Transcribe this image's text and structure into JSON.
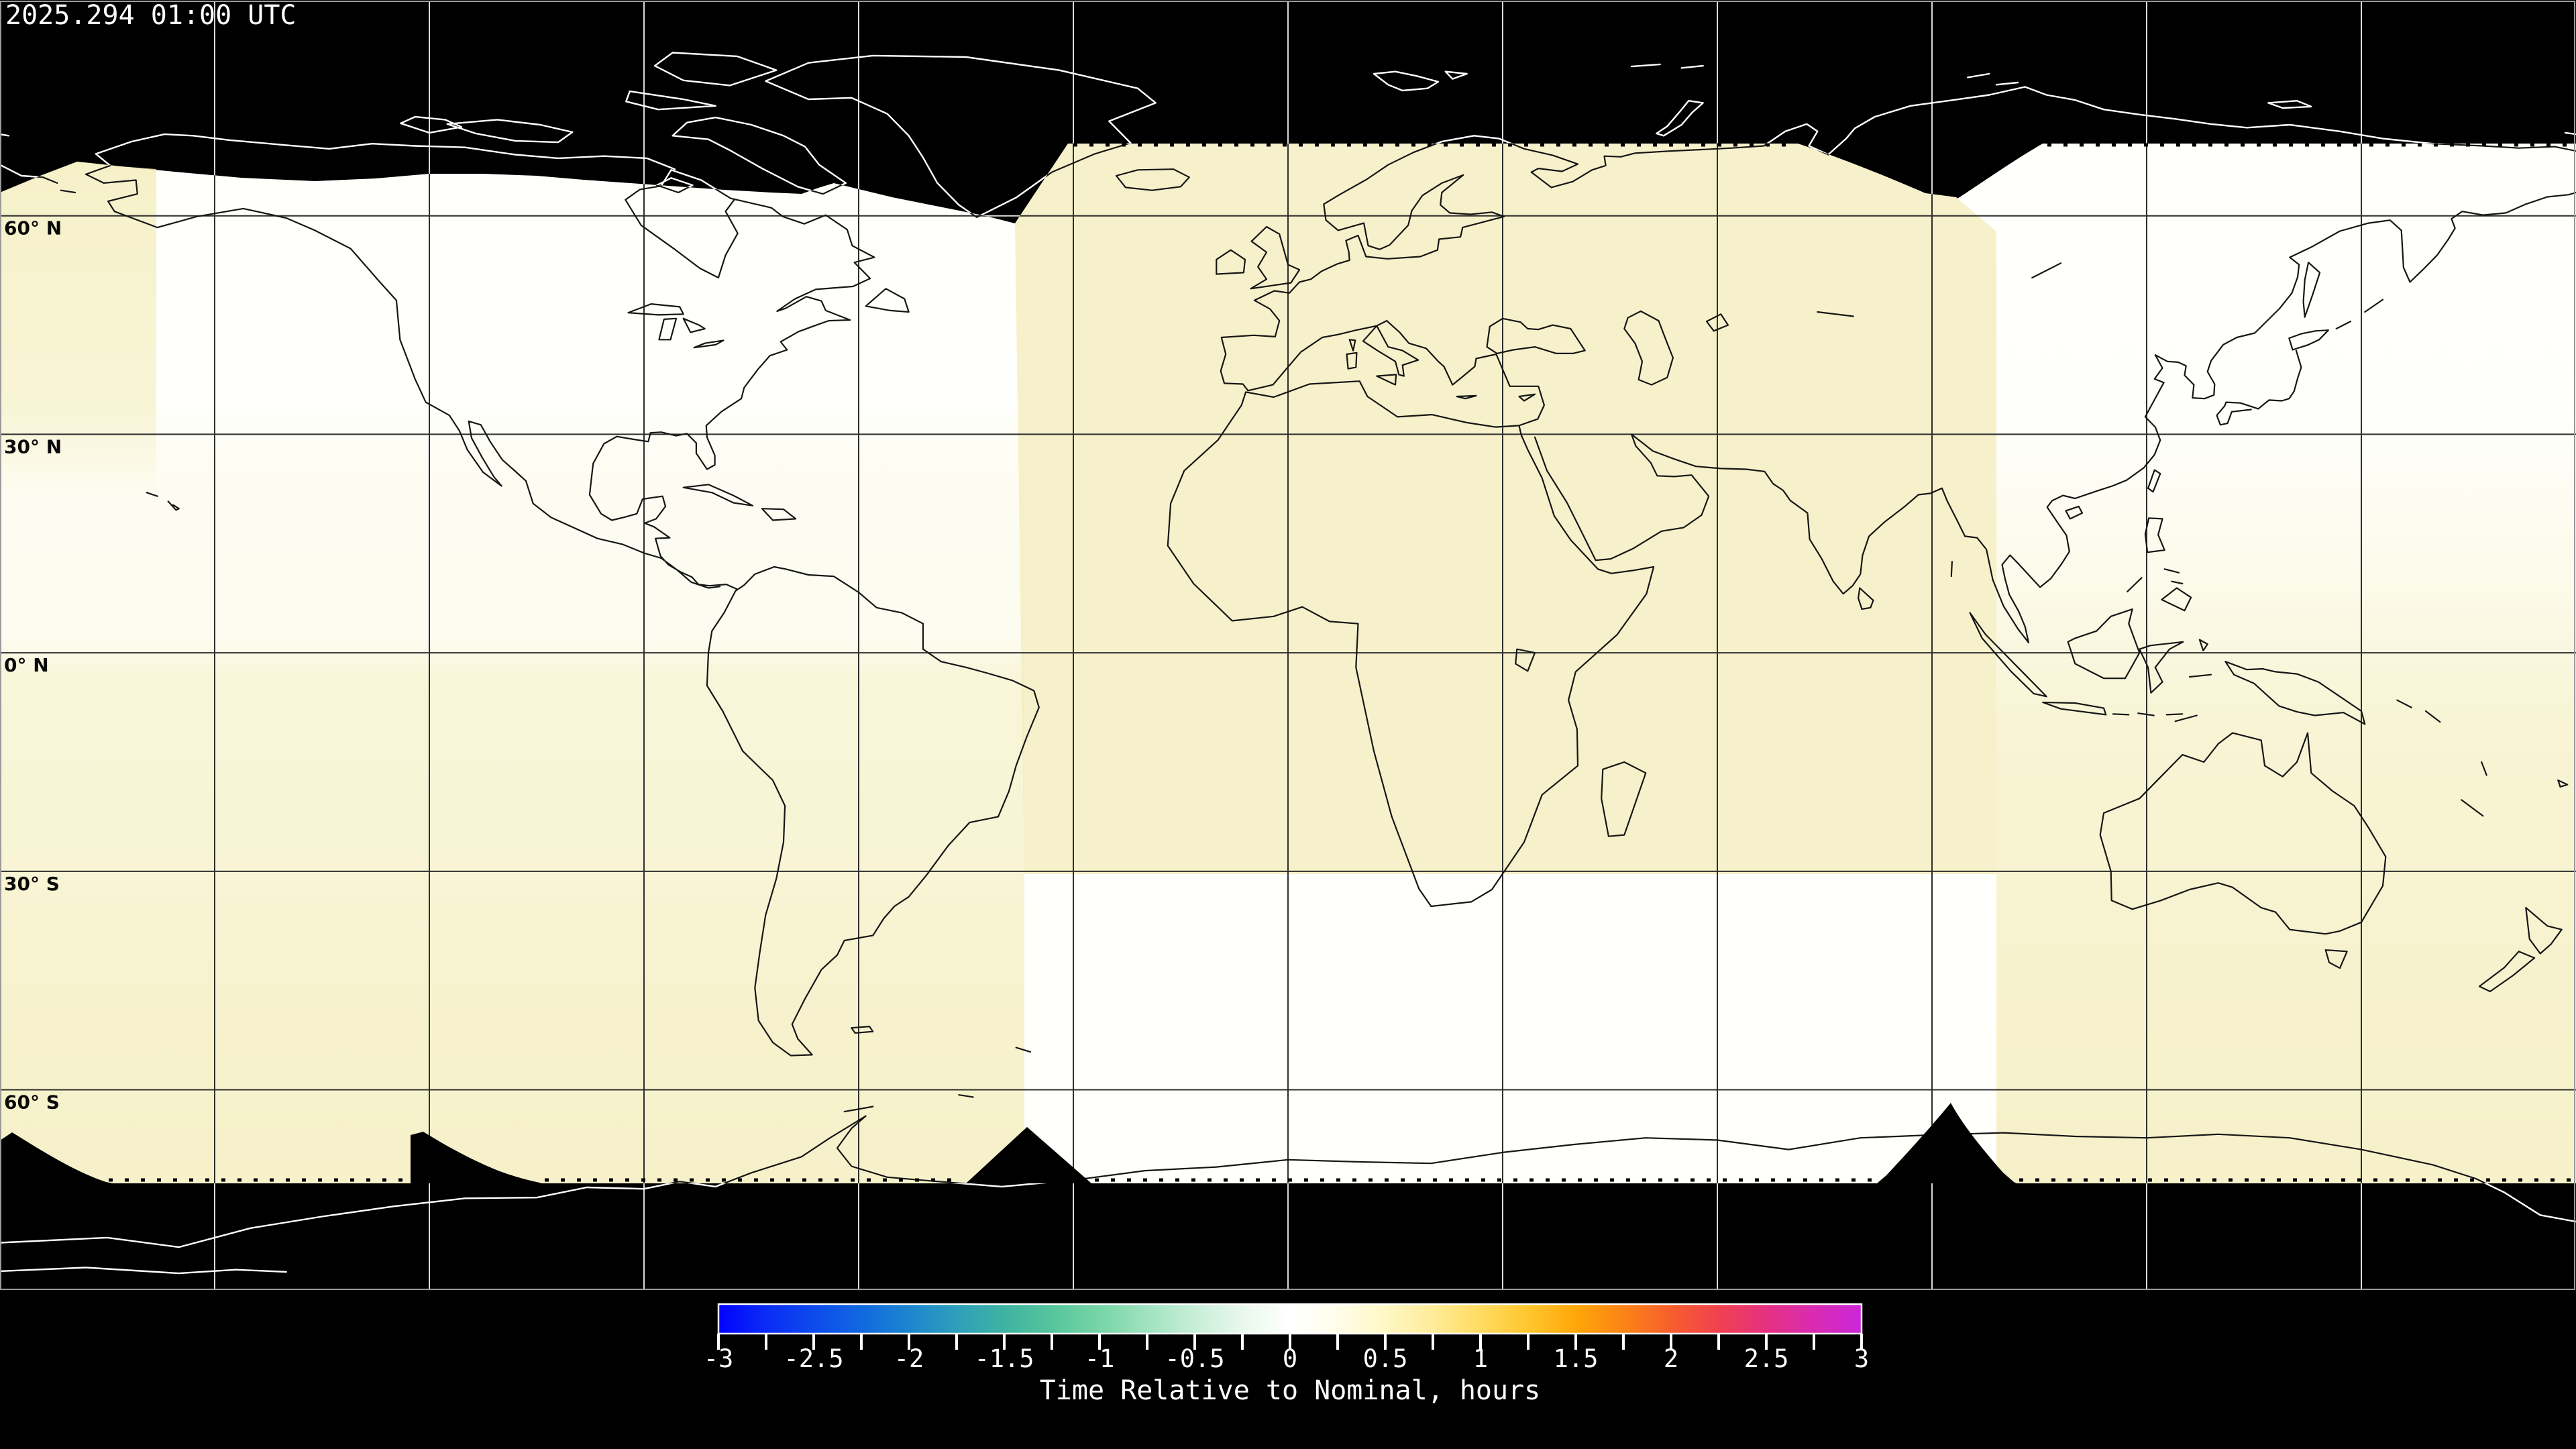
{
  "figure": {
    "timestamp": "2025.294 01:00 UTC"
  },
  "map": {
    "lat_labels": [
      {
        "text": "60° N",
        "lat": 60
      },
      {
        "text": "30° N",
        "lat": 30
      },
      {
        "text": "0° N",
        "lat": 0
      },
      {
        "text": "30° S",
        "lat": -30
      },
      {
        "text": "60° S",
        "lat": -60
      }
    ],
    "grid": {
      "lat_step_deg": 30,
      "lon_step_deg": 30
    }
  },
  "colorbar": {
    "caption": "Time Relative to Nominal, hours",
    "min_hours": -3,
    "max_hours": 3,
    "label_step_hours": 0.5,
    "tick_step_hours": 0.25,
    "tick_labels": [
      "-3",
      "-2.5",
      "-2",
      "-1.5",
      "-1",
      "-0.5",
      "0",
      "0.5",
      "1",
      "1.5",
      "2",
      "2.5",
      "3"
    ],
    "gradient_stops": [
      {
        "v": -3.0,
        "c": "#0202fe"
      },
      {
        "v": -2.75,
        "c": "#0a2cf5"
      },
      {
        "v": -2.5,
        "c": "#0d4aec"
      },
      {
        "v": -2.25,
        "c": "#1168e0"
      },
      {
        "v": -2.0,
        "c": "#1c86cf"
      },
      {
        "v": -1.75,
        "c": "#2d9fbb"
      },
      {
        "v": -1.5,
        "c": "#3eb3a2"
      },
      {
        "v": -1.25,
        "c": "#57c59c"
      },
      {
        "v": -1.0,
        "c": "#77d5a7"
      },
      {
        "v": -0.75,
        "c": "#a0e3c0"
      },
      {
        "v": -0.5,
        "c": "#c8eed8"
      },
      {
        "v": -0.25,
        "c": "#e9f8ec"
      },
      {
        "v": 0.0,
        "c": "#ffffff"
      },
      {
        "v": 0.25,
        "c": "#fffdea"
      },
      {
        "v": 0.5,
        "c": "#fff8c4"
      },
      {
        "v": 0.75,
        "c": "#ffec9a"
      },
      {
        "v": 1.0,
        "c": "#ffdb60"
      },
      {
        "v": 1.25,
        "c": "#ffc62e"
      },
      {
        "v": 1.5,
        "c": "#ffa70a"
      },
      {
        "v": 1.75,
        "c": "#fb8416"
      },
      {
        "v": 2.0,
        "c": "#f75e2d"
      },
      {
        "v": 2.25,
        "c": "#f04150"
      },
      {
        "v": 2.5,
        "c": "#e43181"
      },
      {
        "v": 2.75,
        "c": "#d92bb2"
      },
      {
        "v": 3.0,
        "c": "#cb27da"
      }
    ]
  },
  "chart_data": {
    "type": "heatmap",
    "title": "Time Relative to Nominal, hours",
    "timestamp_utc": "2025.294 01:00 UTC",
    "projection": "equirectangular world map, 180W-180E, 90N-90S, gridlines every 30 degrees",
    "colorbar": {
      "min": -3,
      "max": 3,
      "units": "hours",
      "tick_labels": [
        "-3",
        "-2.5",
        "-2",
        "-1.5",
        "-1",
        "-0.5",
        "0",
        "0.5",
        "1",
        "1.5",
        "2",
        "2.5",
        "3"
      ],
      "minor_tick_step": 0.25,
      "position": "bottom"
    },
    "values_colors": {
      "no_data": "#000000",
      "near_zero_hours": "#fffffc",
      "about_plus_quarter_hour": "#f9f4cc"
    },
    "regions": [
      {
        "area": "Arctic above ~70N and Antarctic below ~73S",
        "value": "no data (black, coastlines drawn white)"
      },
      {
        "area": "far-west strip ~180W-158W north of equator",
        "value": "≈ +0.25 h (pale yellow)"
      },
      {
        "area": "Americas swath ~158W-37W",
        "value": "≈ 0 h north of equator (white), ≈ +0.25 h to the south (pale yellow)"
      },
      {
        "area": "Europe / Africa / west Asia swath ~37W-99E",
        "value": "≈ +0.25 h north of ~30S (pale yellow), ≈ 0 h south of it (white)"
      },
      {
        "area": "east Asia / Australia swath ~99E-180E",
        "value": "≈ 0 h in the far north (white) grading to ≈ +0.25 h southward (pale yellow)"
      },
      {
        "area": "night-side cusps near 70N (terminator arcs) and notches at ~73S",
        "value": "no data (black wedges)"
      }
    ]
  }
}
